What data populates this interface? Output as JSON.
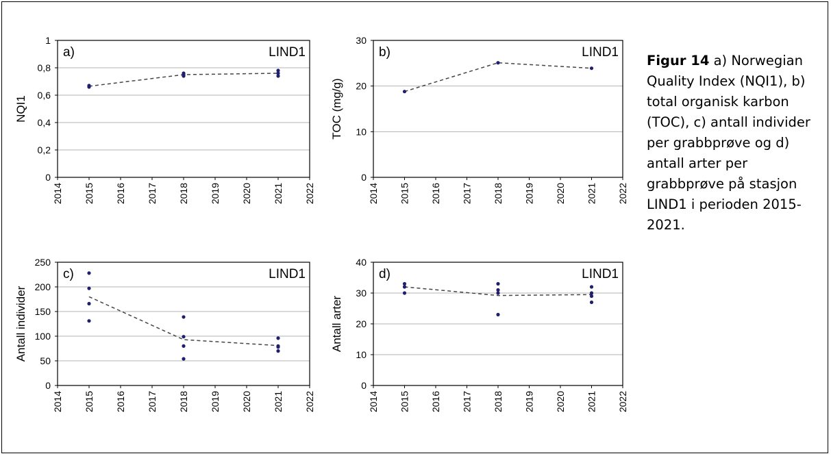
{
  "caption": {
    "label": "Figur 14",
    "text": " a) Norwegian Quality Index (NQI1), b) total organisk karbon (TOC), c) antall individer per grabbprøve og d) antall arter per grabbprøve på stasjon LIND1 i perioden 2015-2021."
  },
  "chart_data": [
    {
      "type": "scatter",
      "panel": "a)",
      "station": "LIND1",
      "ylabel": "NQI1",
      "xlabel": "",
      "xlim": [
        2014,
        2022
      ],
      "ylim": [
        0,
        1
      ],
      "xticks": [
        2014,
        2015,
        2016,
        2017,
        2018,
        2019,
        2020,
        2021,
        2022
      ],
      "yticks": [
        "0",
        "0,2",
        "0,4",
        "0,6",
        "0,8",
        "1"
      ],
      "yticks_values": [
        0,
        0.2,
        0.4,
        0.6,
        0.8,
        1
      ],
      "grid": true,
      "points": [
        {
          "x": 2015,
          "y": 0.66
        },
        {
          "x": 2015,
          "y": 0.67
        },
        {
          "x": 2018,
          "y": 0.74
        },
        {
          "x": 2018,
          "y": 0.75
        },
        {
          "x": 2018,
          "y": 0.76
        },
        {
          "x": 2021,
          "y": 0.74
        },
        {
          "x": 2021,
          "y": 0.76
        },
        {
          "x": 2021,
          "y": 0.78
        }
      ],
      "mean_line": [
        {
          "x": 2015,
          "y": 0.665
        },
        {
          "x": 2018,
          "y": 0.75
        },
        {
          "x": 2021,
          "y": 0.76
        }
      ],
      "marker_color": "#1f1f6e",
      "line_color": "#444444",
      "line_style": "dashed"
    },
    {
      "type": "scatter",
      "panel": "b)",
      "station": "LIND1",
      "ylabel": "TOC (mg/g)",
      "xlabel": "",
      "xlim": [
        2014,
        2022
      ],
      "ylim": [
        0,
        30
      ],
      "xticks": [
        2014,
        2015,
        2016,
        2017,
        2018,
        2019,
        2020,
        2021,
        2022
      ],
      "yticks": [
        "0",
        "10",
        "20",
        "30"
      ],
      "yticks_values": [
        0,
        10,
        20,
        30
      ],
      "grid": true,
      "points": [
        {
          "x": 2015,
          "y": 18.8
        },
        {
          "x": 2018,
          "y": 25.1
        },
        {
          "x": 2021,
          "y": 23.9
        }
      ],
      "mean_line": [
        {
          "x": 2015,
          "y": 18.8
        },
        {
          "x": 2018,
          "y": 25.1
        },
        {
          "x": 2021,
          "y": 23.9
        }
      ],
      "marker_color": "#1f1f6e",
      "line_color": "#444444",
      "line_style": "dashed"
    },
    {
      "type": "scatter",
      "panel": "c)",
      "station": "LIND1",
      "ylabel": "Antall individer",
      "xlabel": "",
      "xlim": [
        2014,
        2022
      ],
      "ylim": [
        0,
        250
      ],
      "xticks": [
        2014,
        2015,
        2016,
        2017,
        2018,
        2019,
        2020,
        2021,
        2022
      ],
      "yticks": [
        "0",
        "50",
        "100",
        "150",
        "200",
        "250"
      ],
      "yticks_values": [
        0,
        50,
        100,
        150,
        200,
        250
      ],
      "grid": true,
      "points": [
        {
          "x": 2015,
          "y": 228
        },
        {
          "x": 2015,
          "y": 197
        },
        {
          "x": 2015,
          "y": 166
        },
        {
          "x": 2015,
          "y": 131
        },
        {
          "x": 2018,
          "y": 139
        },
        {
          "x": 2018,
          "y": 99
        },
        {
          "x": 2018,
          "y": 80
        },
        {
          "x": 2018,
          "y": 54
        },
        {
          "x": 2021,
          "y": 96
        },
        {
          "x": 2021,
          "y": 80
        },
        {
          "x": 2021,
          "y": 78
        },
        {
          "x": 2021,
          "y": 70
        }
      ],
      "mean_line": [
        {
          "x": 2015,
          "y": 180
        },
        {
          "x": 2018,
          "y": 93
        },
        {
          "x": 2021,
          "y": 81
        }
      ],
      "marker_color": "#1f1f6e",
      "line_color": "#444444",
      "line_style": "dashed"
    },
    {
      "type": "scatter",
      "panel": "d)",
      "station": "LIND1",
      "ylabel": "Antall arter",
      "xlabel": "",
      "xlim": [
        2014,
        2022
      ],
      "ylim": [
        0,
        40
      ],
      "xticks": [
        2014,
        2015,
        2016,
        2017,
        2018,
        2019,
        2020,
        2021,
        2022
      ],
      "yticks": [
        "0",
        "10",
        "20",
        "30",
        "40"
      ],
      "yticks_values": [
        0,
        10,
        20,
        30,
        40
      ],
      "grid": true,
      "points": [
        {
          "x": 2015,
          "y": 33
        },
        {
          "x": 2015,
          "y": 32
        },
        {
          "x": 2015,
          "y": 30
        },
        {
          "x": 2018,
          "y": 33
        },
        {
          "x": 2018,
          "y": 31
        },
        {
          "x": 2018,
          "y": 30
        },
        {
          "x": 2018,
          "y": 23
        },
        {
          "x": 2021,
          "y": 32
        },
        {
          "x": 2021,
          "y": 30
        },
        {
          "x": 2021,
          "y": 29
        },
        {
          "x": 2021,
          "y": 27
        }
      ],
      "mean_line": [
        {
          "x": 2015,
          "y": 32
        },
        {
          "x": 2018,
          "y": 29.2
        },
        {
          "x": 2021,
          "y": 29.5
        }
      ],
      "marker_color": "#1f1f6e",
      "line_color": "#444444",
      "line_style": "dashed"
    }
  ]
}
